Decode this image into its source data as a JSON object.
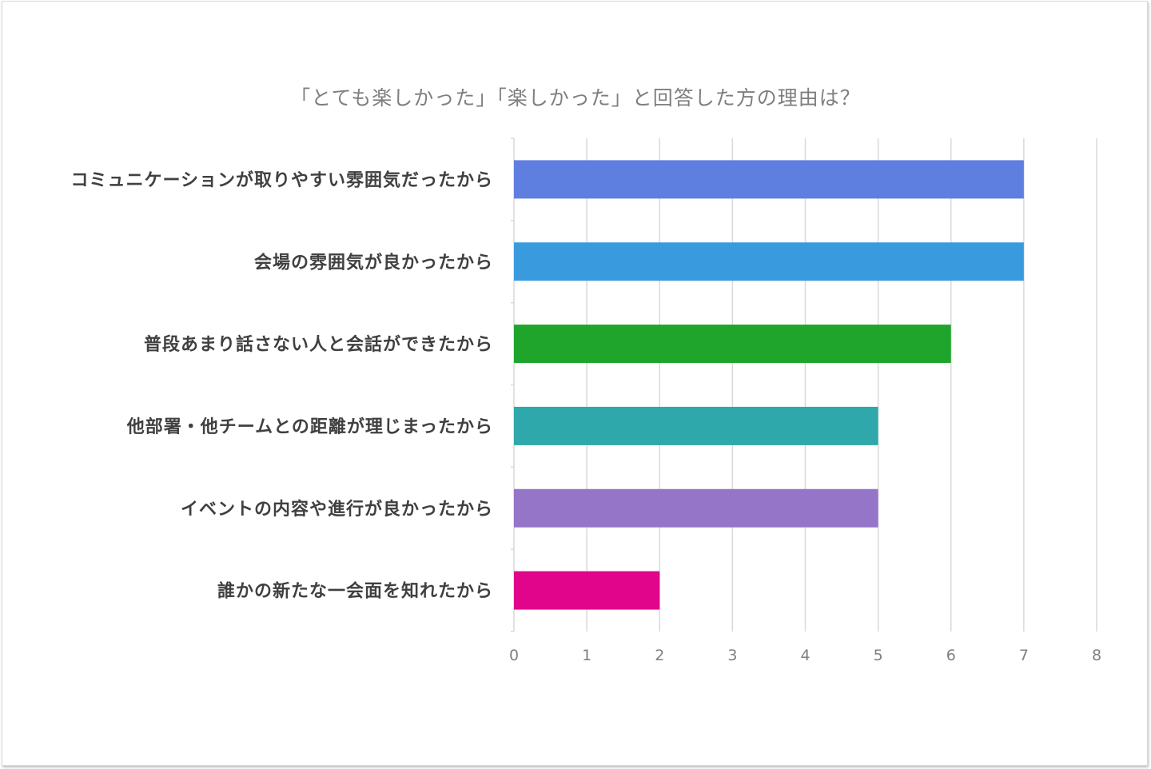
{
  "chart_data": {
    "type": "bar",
    "orientation": "horizontal",
    "title": "「とても楽しかった」「楽しかった」と回答した方の理由は？",
    "categories": [
      "コミュニケーションが取りやすい雰囲気だったから",
      "会場の雰囲気が良かったから",
      "普段あまり話さない人と会話ができたから",
      "他部署・他チームとの距離が理じまったから",
      "イベントの内容や進行が良かったから",
      "誰かの新たな一会面を知れたから"
    ],
    "values": [
      7,
      7,
      6,
      5,
      5,
      2
    ],
    "colors": [
      "#5f7fe0",
      "#3a9ade",
      "#20a52c",
      "#2ea8ab",
      "#9575c8",
      "#e0058a"
    ],
    "xlim": [
      0,
      8
    ],
    "xticks": [
      "0",
      "1",
      "2",
      "3",
      "4",
      "5",
      "6",
      "7",
      "8"
    ],
    "grid": true,
    "legend": "none"
  }
}
